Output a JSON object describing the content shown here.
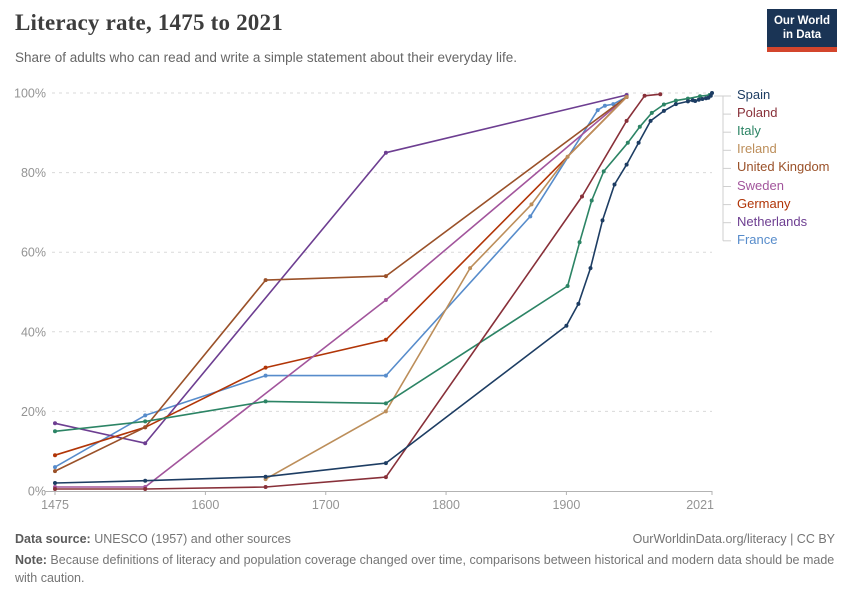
{
  "header": {
    "title": "Literacy rate, 1475 to 2021",
    "subtitle": "Share of adults who can read and write a simple statement about their everyday life.",
    "logo": {
      "line1": "Our World",
      "line2": "in Data",
      "bg_color": "#1A3455",
      "accent_color": "#D3452C"
    }
  },
  "footer": {
    "source_label": "Data source:",
    "source_text": " UNESCO (1957) and other sources",
    "link": "OurWorldinData.org/literacy | CC BY",
    "note_label": "Note:",
    "note_text": " Because definitions of literacy and population coverage changed over time, comparisons between historical and modern data should be made with caution."
  },
  "chart_data": {
    "type": "line",
    "title": "Literacy rate, 1475 to 2021",
    "xlabel": "",
    "ylabel": "",
    "x_domain": [
      1475,
      2021
    ],
    "y_domain": [
      0,
      100
    ],
    "x_ticks": [
      1475,
      1600,
      1700,
      1800,
      1900,
      2021
    ],
    "y_ticks": [
      0,
      20,
      40,
      60,
      80,
      100
    ],
    "y_tick_suffix": "%",
    "grid": "horizontal-dashed",
    "legend_position": "right",
    "grid_color": "#dadada",
    "axis_color": "#b3b3b3",
    "tick_label_color": "#949494",
    "connector_color": "#cfcfcf",
    "series": [
      {
        "name": "Spain",
        "color": "#1D3D63",
        "points": [
          [
            1475,
            2
          ],
          [
            1550,
            2.6
          ],
          [
            1650,
            3.6
          ],
          [
            1750,
            7
          ],
          [
            1900,
            41.5
          ],
          [
            1910,
            47
          ],
          [
            1920,
            56
          ],
          [
            1930,
            68
          ],
          [
            1940,
            77
          ],
          [
            1950,
            82
          ],
          [
            1960,
            87.5
          ],
          [
            1970,
            93
          ],
          [
            1981,
            95.5
          ],
          [
            1991,
            97.2
          ],
          [
            2001,
            97.9
          ],
          [
            2005,
            98.2
          ],
          [
            2007,
            98.0
          ],
          [
            2010,
            98.3
          ],
          [
            2013,
            98.5
          ],
          [
            2016,
            98.7
          ],
          [
            2018,
            98.8
          ],
          [
            2020,
            99.3
          ],
          [
            2021,
            100
          ]
        ]
      },
      {
        "name": "Poland",
        "color": "#883039",
        "points": [
          [
            1475,
            0.5
          ],
          [
            1550,
            0.5
          ],
          [
            1650,
            1
          ],
          [
            1750,
            3.5
          ],
          [
            1913,
            74
          ],
          [
            1950,
            93
          ],
          [
            1965,
            99.3
          ],
          [
            1978,
            99.7
          ]
        ]
      },
      {
        "name": "Italy",
        "color": "#2C8465",
        "points": [
          [
            1475,
            15
          ],
          [
            1550,
            17.5
          ],
          [
            1650,
            22.5
          ],
          [
            1750,
            22
          ],
          [
            1901,
            51.5
          ],
          [
            1911,
            62.5
          ],
          [
            1921,
            73
          ],
          [
            1931,
            80.3
          ],
          [
            1951,
            87.5
          ],
          [
            1961,
            91.5
          ],
          [
            1971,
            95
          ],
          [
            1981,
            97.1
          ],
          [
            1991,
            98.1
          ],
          [
            2001,
            98.6
          ],
          [
            2011,
            99.2
          ],
          [
            2019,
            99.5
          ]
        ]
      },
      {
        "name": "Ireland",
        "color": "#BC8E5A",
        "points": [
          [
            1650,
            3
          ],
          [
            1750,
            20
          ],
          [
            1820,
            56
          ],
          [
            1871,
            72
          ],
          [
            1901,
            84
          ],
          [
            1950,
            99
          ]
        ]
      },
      {
        "name": "United Kingdom",
        "color": "#9A5129",
        "points": [
          [
            1475,
            5
          ],
          [
            1550,
            16
          ],
          [
            1650,
            53
          ],
          [
            1750,
            54
          ],
          [
            1950,
            99
          ]
        ]
      },
      {
        "name": "Sweden",
        "color": "#A2559C",
        "points": [
          [
            1475,
            1
          ],
          [
            1550,
            1
          ],
          [
            1750,
            48
          ],
          [
            1950,
            99
          ]
        ]
      },
      {
        "name": "Germany",
        "color": "#B13507",
        "points": [
          [
            1475,
            9
          ],
          [
            1550,
            16
          ],
          [
            1650,
            31
          ],
          [
            1750,
            38
          ],
          [
            1950,
            99
          ]
        ]
      },
      {
        "name": "Netherlands",
        "color": "#6D3E91",
        "points": [
          [
            1475,
            17
          ],
          [
            1550,
            12
          ],
          [
            1750,
            85
          ],
          [
            1950,
            99.5
          ]
        ]
      },
      {
        "name": "France",
        "color": "#578CCB",
        "points": [
          [
            1475,
            6
          ],
          [
            1550,
            19
          ],
          [
            1650,
            29
          ],
          [
            1750,
            29
          ],
          [
            1870,
            69
          ],
          [
            1926,
            95.7
          ],
          [
            1932,
            96.8
          ],
          [
            1939,
            97.2
          ],
          [
            1950,
            99
          ]
        ]
      }
    ]
  }
}
